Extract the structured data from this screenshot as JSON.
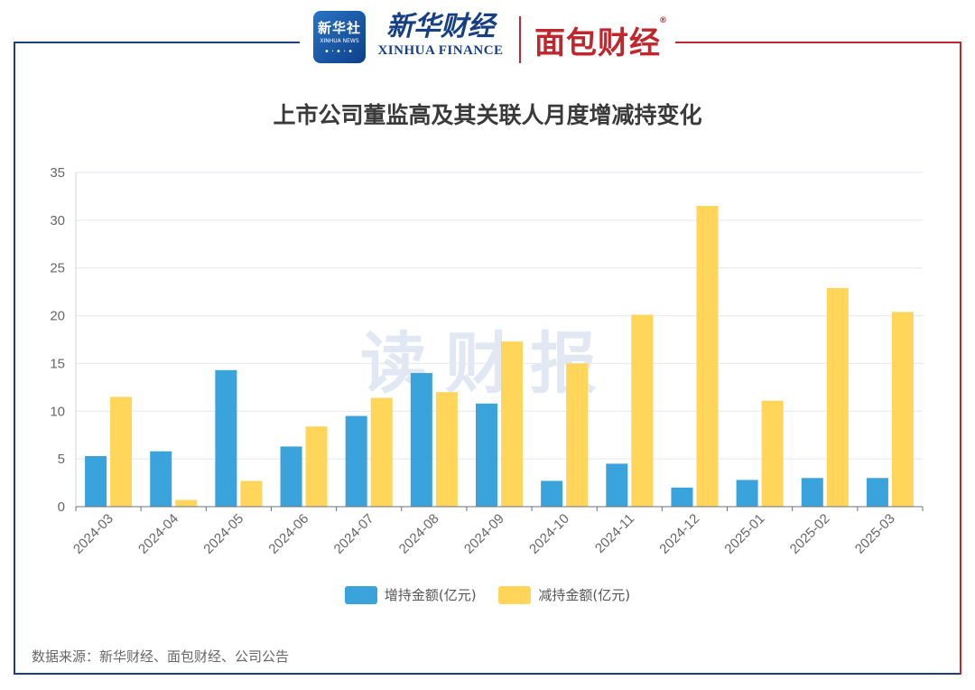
{
  "header": {
    "logo_cn": "新华社",
    "logo_en": "XINHUA NEWS",
    "brand_cn": "新华财经",
    "brand_en": "XINHUA FINANCE",
    "brand2": "面包财经",
    "brand2_mark": "®"
  },
  "watermark": "读财报",
  "source": "数据来源：新华财经、面包财经、公司公告",
  "colors": {
    "increase": "#3aa3dc",
    "decrease": "#ffd55a",
    "frame_blue": "#1f3f7a",
    "frame_red": "#c0272d"
  },
  "chart_data": {
    "type": "bar",
    "title": "上市公司董监高及其关联人月度增减持变化",
    "categories": [
      "2024-03",
      "2024-04",
      "2024-05",
      "2024-06",
      "2024-07",
      "2024-08",
      "2024-09",
      "2024-10",
      "2024-11",
      "2024-12",
      "2025-01",
      "2025-02",
      "2025-03"
    ],
    "series": [
      {
        "name": "增持金额(亿元)",
        "values": [
          5.3,
          5.8,
          14.3,
          6.3,
          9.5,
          14.0,
          10.8,
          2.7,
          4.5,
          2.0,
          2.8,
          3.0,
          3.0
        ]
      },
      {
        "name": "减持金额(亿元)",
        "values": [
          11.5,
          0.7,
          2.7,
          8.4,
          11.4,
          12.0,
          17.3,
          15.0,
          20.1,
          31.5,
          11.1,
          22.9,
          20.4
        ]
      }
    ],
    "yticks": [
      0,
      5,
      10,
      15,
      20,
      25,
      30,
      35
    ],
    "ylim": [
      0,
      35
    ],
    "xlabel": "",
    "ylabel": "",
    "legend": "bottom"
  }
}
